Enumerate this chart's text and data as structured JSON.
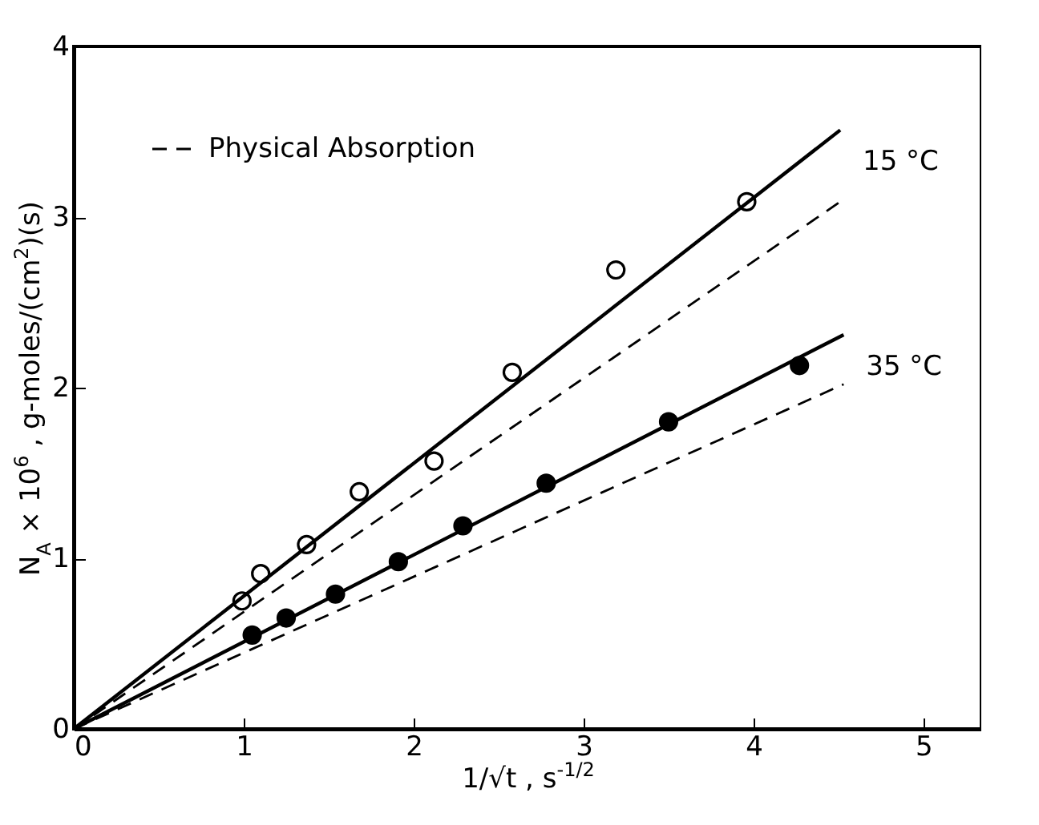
{
  "chart_data": {
    "type": "scatter",
    "xlabel": "1/√t   ,   s$^{-1/2}$",
    "ylabel": "N$_{A}$ × 10$^{6}$  ,   g-moles/(cm$^{2}$)(s)",
    "xlim": [
      0,
      5.34
    ],
    "ylim": [
      0,
      4
    ],
    "xticks": [
      0,
      1,
      2,
      3,
      4,
      5
    ],
    "yticks": [
      0,
      1,
      2,
      3,
      4
    ],
    "grid": false,
    "legend": "top left",
    "series": [
      {
        "marker": "circle",
        "color": "#ffffff",
        "x": [
          0.99,
          1.1,
          1.37,
          1.68,
          2.12,
          2.58,
          3.19,
          3.96
        ],
        "values": [
          0.75,
          0.91,
          1.08,
          1.39,
          1.57,
          2.09,
          2.69,
          3.09
        ]
      },
      {
        "marker": "circle",
        "color": "#000000",
        "x": [
          1.05,
          1.25,
          1.54,
          1.91,
          2.29,
          2.78,
          3.5,
          4.27
        ],
        "values": [
          0.55,
          0.65,
          0.79,
          0.98,
          1.19,
          1.44,
          1.8,
          2.13
        ]
      },
      {
        "type": "line",
        "name": "15 °C",
        "line_style": "solid",
        "color": "#000000",
        "x": [
          0,
          4.51
        ],
        "values": [
          0,
          3.51
        ]
      },
      {
        "type": "line",
        "name": "35 °C",
        "line_style": "solid",
        "color": "#000000",
        "x": [
          0,
          4.53
        ],
        "values": [
          0,
          2.31
        ]
      },
      {
        "type": "line",
        "name": "Physical Absorption",
        "line_style": "dashed",
        "color": "#000000",
        "x": [
          0,
          4.51
        ],
        "values": [
          0,
          3.09
        ]
      },
      {
        "type": "line",
        "line_style": "dashed",
        "color": "#000000",
        "x": [
          0,
          4.53
        ],
        "values": [
          0,
          2.02
        ]
      }
    ]
  }
}
